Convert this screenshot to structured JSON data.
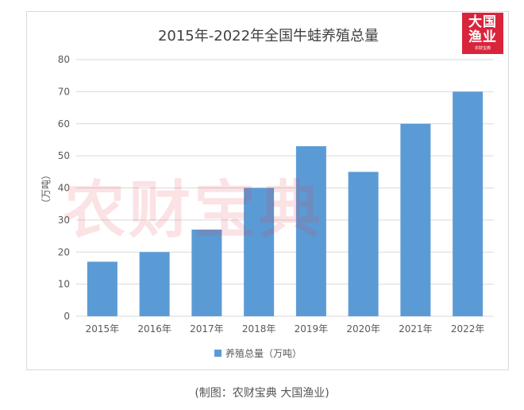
{
  "caption": "(制图：农财宝典 大国渔业)",
  "watermark": "农财宝典",
  "logo": {
    "line1": "大国",
    "line2": "渔业",
    "small": "农财宝典"
  },
  "colors": {
    "bar": "#5b9bd5",
    "grid": "#d9d9d9",
    "text": "#595959"
  },
  "chart_data": {
    "type": "bar",
    "title": "2015年-2022年全国牛蛙养殖总量",
    "ylabel": "（万吨）",
    "xlabel": "",
    "categories": [
      "2015年",
      "2016年",
      "2017年",
      "2018年",
      "2019年",
      "2020年",
      "2021年",
      "2022年"
    ],
    "series": [
      {
        "name": "养殖总量（万吨）",
        "values": [
          17,
          20,
          27,
          40,
          53,
          45,
          60,
          70
        ]
      }
    ],
    "ylim": [
      0,
      80
    ],
    "yticks": [
      0,
      10,
      20,
      30,
      40,
      50,
      60,
      70,
      80
    ],
    "grid": true,
    "legend": "bottom"
  }
}
